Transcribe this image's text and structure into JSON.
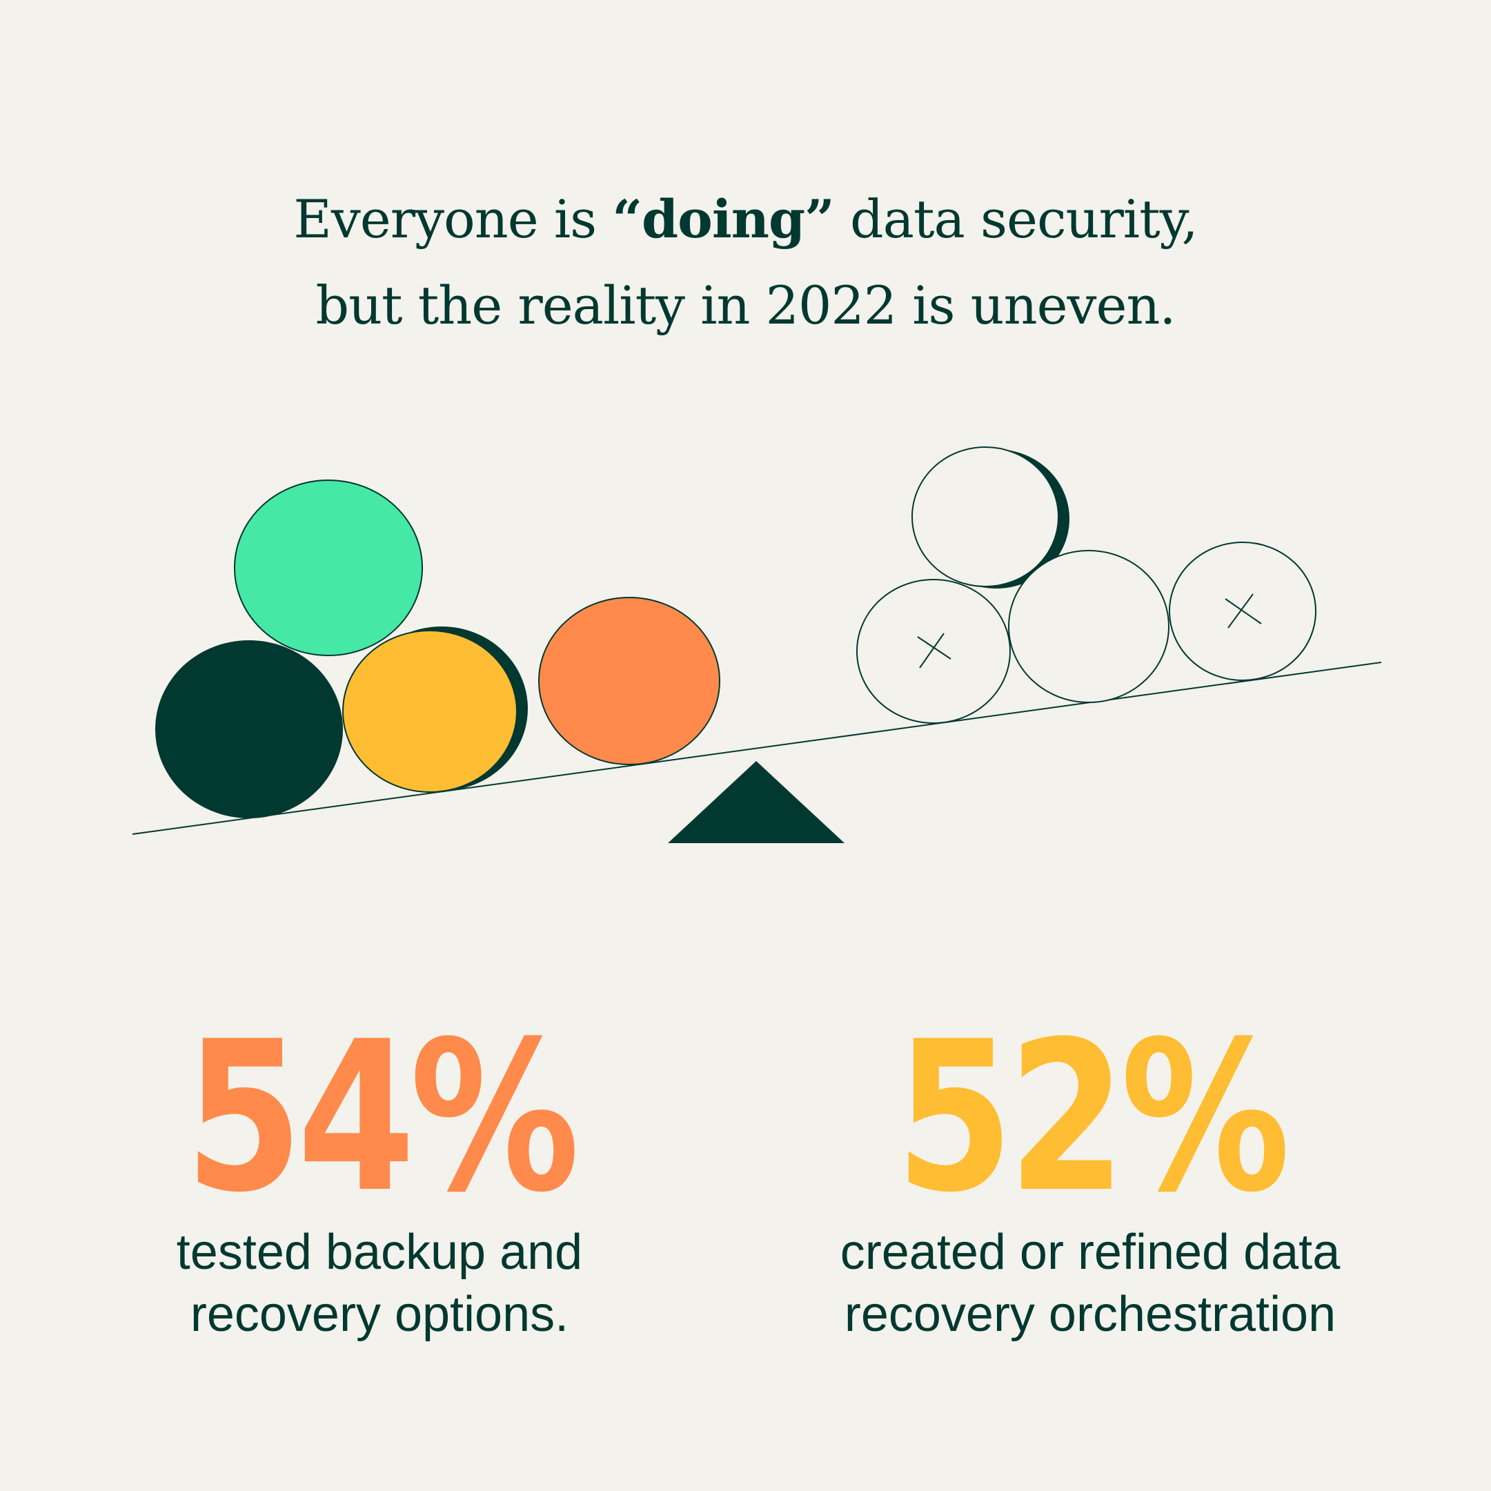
{
  "headline": {
    "line1_pre": "Everyone is ",
    "line1_bold": "“doing”",
    "line1_post": " data security,",
    "line2": "but the reality in 2022 is uneven."
  },
  "illustration": {
    "filled_balls": [
      "green",
      "dark-green",
      "yellow",
      "orange"
    ],
    "outline_balls_count": 4,
    "fulcrum_color": "#013830"
  },
  "stats": [
    {
      "value": "54%",
      "color": "#ff8a4b",
      "caption_line1": "tested backup and",
      "caption_line2": "recovery options."
    },
    {
      "value": "52%",
      "color": "#ffbd33",
      "caption_line1": "created or refined data",
      "caption_line2": "recovery orchestration"
    }
  ],
  "colors": {
    "background": "#f3f2ec",
    "dark_green": "#013830",
    "mint": "#46e8a6",
    "yellow": "#ffbd33",
    "orange": "#ff8a4b"
  }
}
